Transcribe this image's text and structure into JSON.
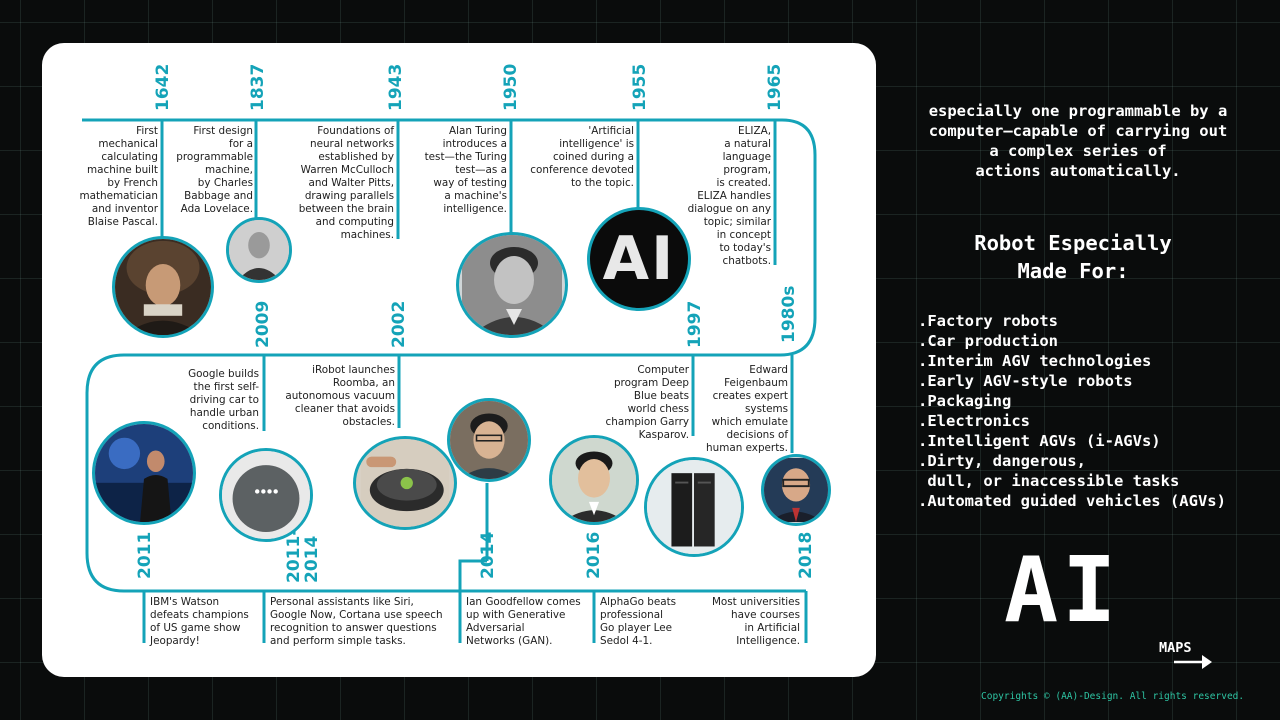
{
  "timeline": {
    "years": {
      "y1642": "1642",
      "y1837": "1837",
      "y1943": "1943",
      "y1950": "1950",
      "y1955": "1955",
      "y1965": "1965",
      "y1980s": "1980s",
      "y1997": "1997",
      "y2002": "2002",
      "y2009": "2009",
      "y2011": "2011",
      "y2011_2014": "2011-\n2014",
      "y2014": "2014",
      "y2016": "2016",
      "y2018": "2018"
    },
    "events": {
      "e1642": "First\nmechanical\ncalculating\nmachine built\nby French\nmathematician\nand inventor\nBlaise Pascal.",
      "e1837": "First design\nfor a\nprogrammable\nmachine,\nby Charles\nBabbage and\nAda Lovelace.",
      "e1943": "Foundations of\nneural networks\nestablished by\nWarren McCulloch\nand Walter Pitts,\ndrawing parallels\nbetween the brain\nand computing\nmachines.",
      "e1950": "Alan Turing\nintroduces a\ntest—the Turing\ntest—as a\nway of testing\na machine's\nintelligence.",
      "e1955": "'Artificial\nintelligence' is\ncoined during a\nconference devoted\nto the topic.",
      "e1965": "ELIZA,\na natural\nlanguage\nprogram,\nis created.\nELIZA handles\ndialogue on any\ntopic; similar\nin concept\nto today's\nchatbots.",
      "e2009": "Google builds\nthe first self-\ndriving car to\nhandle urban\nconditions.",
      "e2002": "iRobot launches\nRoomba, an\nautonomous vacuum\ncleaner that avoids\nobstacles.",
      "e1997": "Computer\nprogram Deep\nBlue beats\nworld chess\nchampion Garry\nKasparov.",
      "e1980s": "Edward\nFeigenbaum\ncreates expert\nsystems\nwhich emulate\ndecisions of\nhuman experts.",
      "e2011": "IBM's Watson\ndefeats champions\nof US game show\nJeopardy!",
      "e2011_2014": "Personal assistants like Siri,\nGoogle Now, Cortana use speech\nrecognition to answer questions\nand perform simple tasks.",
      "e2014": "Ian Goodfellow comes\nup with Generative\nAdversarial\nNetworks (GAN).",
      "e2016": "AlphaGo beats\nprofessional\nGo player Lee\nSedol 4-1.",
      "e2018": "Most universities\nhave courses\nin Artificial\nIntelligence."
    },
    "ai_photo_text": "AI",
    "accent_color": "#14a3b8"
  },
  "right_panel": {
    "description": "especially one programmable by a\ncomputer—capable of carrying out\na complex series of\nactions automatically.",
    "heading": "Robot Especially\nMade For:",
    "list": [
      ".Factory robots",
      ".Car production",
      ".Interim AGV technologies",
      ".Early AGV-style robots",
      ".Packaging",
      ".Electronics",
      ".Intelligent AGVs (i-AGVs)",
      ".Dirty, dangerous,",
      " dull, or inaccessible tasks",
      ".Automated guided vehicles (AGVs)"
    ],
    "big_title": "AI",
    "maps_label": "MAPS",
    "copyright": "Copyrights © (AA)-Design. All rights reserved."
  },
  "icons": [
    "arrow-right-icon"
  ]
}
